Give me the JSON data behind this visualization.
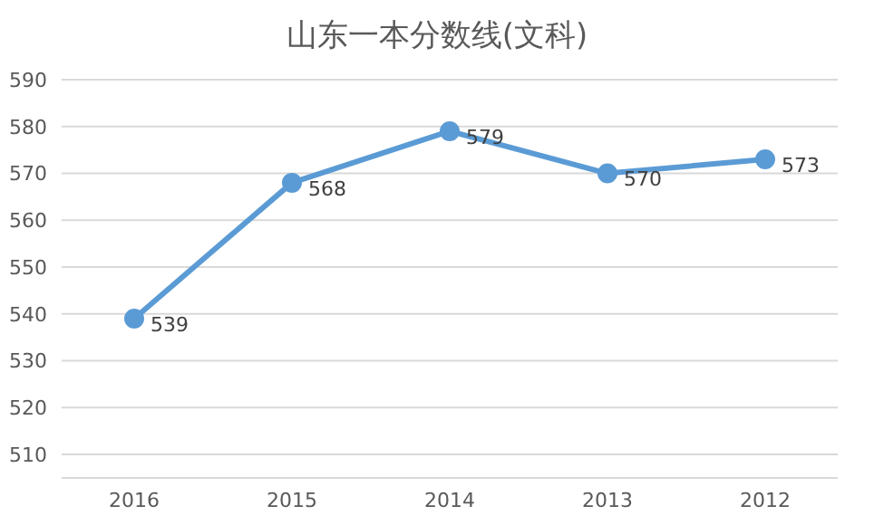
{
  "chart_data": {
    "type": "line",
    "title": "山东一本分数线(文科)",
    "categories": [
      "2016",
      "2015",
      "2014",
      "2013",
      "2012"
    ],
    "series": [
      {
        "color": "#5b9bd5",
        "values": [
          539,
          568,
          579,
          570,
          573
        ]
      }
    ],
    "ylim": [
      505,
      590
    ],
    "yticks": [
      510,
      520,
      530,
      540,
      550,
      560,
      570,
      580,
      590
    ],
    "grid": "y",
    "marker": "circle",
    "line_style": "solid",
    "data_labels": true
  }
}
